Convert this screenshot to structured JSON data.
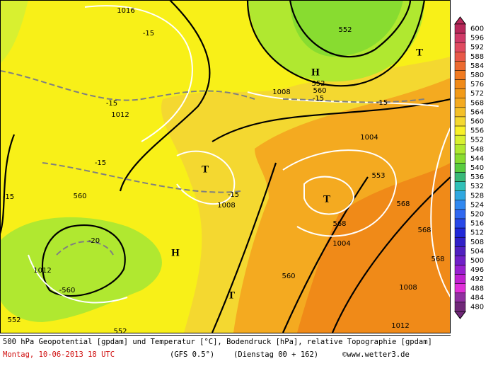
{
  "map": {
    "labels": [
      "1016",
      "-15",
      "552",
      "T",
      "H",
      "552",
      "560",
      "1008",
      "-15",
      "-15",
      "-15",
      "1012",
      "1004",
      "T",
      "-15",
      "553",
      "T",
      "-15",
      "1008",
      "560",
      "568",
      "568",
      "568",
      "1004",
      "-20",
      "H",
      "1012",
      "-560",
      "568",
      "560",
      "T",
      "1008",
      "552",
      "552",
      "1012",
      "-15"
    ]
  },
  "legend": {
    "values": [
      600,
      596,
      592,
      588,
      584,
      580,
      576,
      572,
      568,
      564,
      560,
      556,
      552,
      548,
      544,
      540,
      536,
      532,
      528,
      524,
      520,
      516,
      512,
      508,
      504,
      500,
      496,
      492,
      488,
      484,
      480
    ],
    "colors": [
      "#b8285a",
      "#d03a68",
      "#e04a60",
      "#e85848",
      "#ec6a30",
      "#f07a20",
      "#f08a18",
      "#f29a18",
      "#f4aa20",
      "#f4c028",
      "#f4d830",
      "#f8f028",
      "#d8f030",
      "#b0e830",
      "#88dc30",
      "#58cc40",
      "#38b878",
      "#30c0b8",
      "#30a8e0",
      "#3088f0",
      "#3068f0",
      "#2848e8",
      "#2028d8",
      "#3020c8",
      "#5020c0",
      "#7020c8",
      "#9820d0",
      "#c020d0",
      "#e030d8",
      "#9030a0",
      "#702878"
    ]
  },
  "footer": {
    "line1": "500 hPa Geopotential [gpdam] und Temperatur [°C], Bodendruck [hPa], relative Topographie [gpdam]",
    "date": "Montag, 10-06-2013  18 UTC",
    "model": "(GFS 0.5°)",
    "run": "(Dienstag 00 + 162)",
    "copyright": "©www.wetter3.de"
  }
}
